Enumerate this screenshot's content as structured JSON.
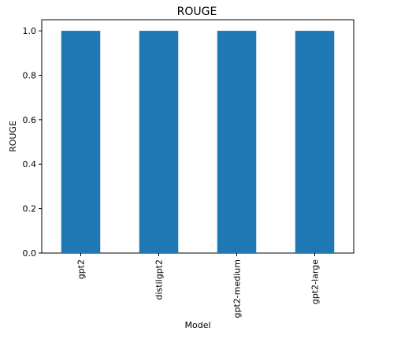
{
  "chart_data": {
    "type": "bar",
    "title": "ROUGE",
    "xlabel": "Model",
    "ylabel": "ROUGE",
    "categories": [
      "gpt2",
      "distilgpt2",
      "gpt2-medium",
      "gpt2-large"
    ],
    "values": [
      1.0,
      1.0,
      1.0,
      1.0
    ],
    "ylim": [
      0.0,
      1.05
    ],
    "yticks": [
      "0.0",
      "0.2",
      "0.4",
      "0.6",
      "0.8",
      "1.0"
    ],
    "bar_color": "#1f77b4",
    "grid": false,
    "legend": "none"
  }
}
